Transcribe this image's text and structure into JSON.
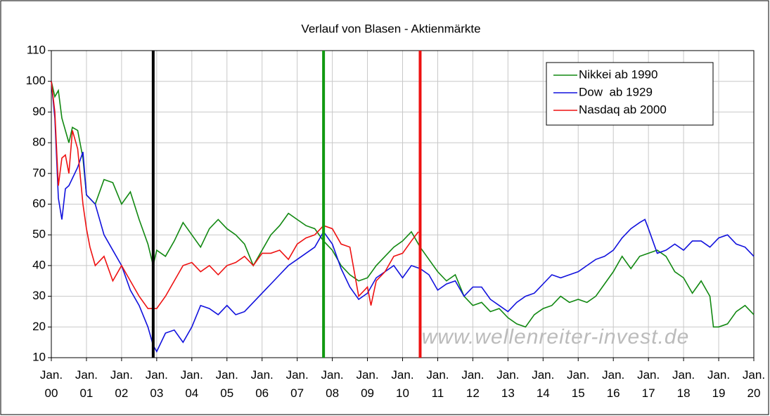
{
  "chart_data": {
    "type": "line",
    "title": "Verlauf von Blasen - Aktienmärkte",
    "watermark": "www.wellenreiter-invest.de",
    "xlim": [
      0,
      20
    ],
    "xticks": [
      {
        "value": 0,
        "label": "Jan. 00"
      },
      {
        "value": 1,
        "label": "Jan. 01"
      },
      {
        "value": 2,
        "label": "Jan. 02"
      },
      {
        "value": 3,
        "label": "Jan. 03"
      },
      {
        "value": 4,
        "label": "Jan. 04"
      },
      {
        "value": 5,
        "label": "Jan. 05"
      },
      {
        "value": 6,
        "label": "Jan. 06"
      },
      {
        "value": 7,
        "label": "Jan. 07"
      },
      {
        "value": 8,
        "label": "Jan. 08"
      },
      {
        "value": 9,
        "label": "Jan. 09"
      },
      {
        "value": 10,
        "label": "Jan. 10"
      },
      {
        "value": 11,
        "label": "Jan. 11"
      },
      {
        "value": 12,
        "label": "Jan. 12"
      },
      {
        "value": 13,
        "label": "Jan. 13"
      },
      {
        "value": 14,
        "label": "Jan. 14"
      },
      {
        "value": 15,
        "label": "Jan. 15"
      },
      {
        "value": 16,
        "label": "Jan. 16"
      },
      {
        "value": 17,
        "label": "Jan. 17"
      },
      {
        "value": 18,
        "label": "Jan. 18"
      },
      {
        "value": 19,
        "label": "Jan. 19"
      },
      {
        "value": 20,
        "label": "Jan. 20"
      }
    ],
    "ylim": [
      10,
      110
    ],
    "yticks": [
      10,
      20,
      30,
      40,
      50,
      60,
      70,
      80,
      90,
      100,
      110
    ],
    "grid": true,
    "legend": "top-right",
    "markers": [
      {
        "x": 2.9,
        "color": "#000000"
      },
      {
        "x": 7.75,
        "color": "#119911"
      },
      {
        "x": 10.5,
        "color": "#ee1111"
      }
    ],
    "series": [
      {
        "name": "Nikkei ab 1990",
        "color": "#118811",
        "x": [
          0,
          0.1,
          0.2,
          0.3,
          0.5,
          0.6,
          0.75,
          0.9,
          1,
          1.25,
          1.5,
          1.75,
          2,
          2.25,
          2.5,
          2.75,
          2.9,
          3,
          3.25,
          3.5,
          3.75,
          4,
          4.25,
          4.5,
          4.75,
          5,
          5.25,
          5.5,
          5.75,
          6,
          6.25,
          6.5,
          6.75,
          7,
          7.25,
          7.5,
          7.75,
          8,
          8.25,
          8.5,
          8.75,
          9,
          9.25,
          9.5,
          9.75,
          10,
          10.25,
          10.5,
          10.75,
          11,
          11.25,
          11.5,
          11.75,
          12,
          12.25,
          12.5,
          12.75,
          13,
          13.25,
          13.5,
          13.75,
          14,
          14.25,
          14.5,
          14.75,
          15,
          15.25,
          15.5,
          15.75,
          16,
          16.25,
          16.5,
          16.75,
          17,
          17.25,
          17.5,
          17.75,
          18,
          18.25,
          18.5,
          18.75,
          18.85,
          19,
          19.25,
          19.5,
          19.75,
          20
        ],
        "values": [
          100,
          95,
          97,
          88,
          80,
          85,
          84,
          75,
          63,
          60,
          68,
          67,
          60,
          64,
          55,
          47,
          40,
          45,
          43,
          48,
          54,
          50,
          46,
          52,
          55,
          52,
          50,
          47,
          40,
          45,
          50,
          53,
          57,
          55,
          53,
          52,
          48,
          45,
          40,
          37,
          35,
          36,
          40,
          43,
          46,
          48,
          51,
          46,
          42,
          38,
          35,
          37,
          30,
          27,
          28,
          25,
          26,
          23,
          21,
          20,
          24,
          26,
          27,
          30,
          28,
          29,
          28,
          30,
          34,
          38,
          43,
          39,
          43,
          44,
          45,
          43,
          38,
          36,
          31,
          35,
          30,
          20,
          20,
          21,
          25,
          27,
          24
        ]
      },
      {
        "name": "Dow  ab 1929",
        "color": "#1111dd",
        "x": [
          0,
          0.1,
          0.2,
          0.3,
          0.4,
          0.5,
          0.75,
          0.9,
          1,
          1.25,
          1.5,
          1.75,
          2,
          2.25,
          2.5,
          2.75,
          2.9,
          3,
          3.25,
          3.5,
          3.75,
          4,
          4.25,
          4.5,
          4.75,
          5,
          5.25,
          5.5,
          5.75,
          6,
          6.25,
          6.5,
          6.75,
          7,
          7.25,
          7.5,
          7.75,
          8,
          8.25,
          8.5,
          8.75,
          9,
          9.25,
          9.5,
          9.75,
          10,
          10.25,
          10.5,
          10.75,
          11,
          11.25,
          11.5,
          11.75,
          12,
          12.25,
          12.5,
          12.75,
          13,
          13.25,
          13.5,
          13.75,
          14,
          14.25,
          14.5,
          14.75,
          15,
          15.25,
          15.5,
          15.75,
          16,
          16.25,
          16.5,
          16.75,
          16.9,
          17,
          17.25,
          17.5,
          17.75,
          18,
          18.25,
          18.5,
          18.75,
          19,
          19.25,
          19.5,
          19.75,
          20
        ],
        "values": [
          100,
          88,
          62,
          55,
          65,
          66,
          72,
          77,
          63,
          60,
          50,
          45,
          40,
          32,
          27,
          20,
          14,
          12,
          18,
          19,
          15,
          20,
          27,
          26,
          24,
          27,
          24,
          25,
          28,
          31,
          34,
          37,
          40,
          42,
          44,
          46,
          51,
          47,
          39,
          33,
          29,
          31,
          36,
          38,
          40,
          36,
          40,
          39,
          37,
          32,
          34,
          35,
          30,
          33,
          33,
          29,
          27,
          25,
          28,
          30,
          31,
          34,
          37,
          36,
          37,
          38,
          40,
          42,
          43,
          45,
          49,
          52,
          54,
          55,
          52,
          44,
          45,
          47,
          45,
          48,
          48,
          46,
          49,
          50,
          47,
          46,
          43
        ]
      },
      {
        "name": "Nasdaq ab 2000",
        "color": "#ee1111",
        "x": [
          0,
          0.1,
          0.2,
          0.3,
          0.4,
          0.5,
          0.6,
          0.75,
          0.9,
          1,
          1.1,
          1.25,
          1.5,
          1.75,
          2,
          2.25,
          2.5,
          2.75,
          3,
          3.25,
          3.5,
          3.75,
          4,
          4.25,
          4.5,
          4.75,
          5,
          5.25,
          5.5,
          5.75,
          6,
          6.25,
          6.5,
          6.75,
          7,
          7.25,
          7.5,
          7.75,
          8,
          8.25,
          8.5,
          8.75,
          9,
          9.1,
          9.25,
          9.5,
          9.75,
          10,
          10.25,
          10.45
        ],
        "values": [
          100,
          90,
          66,
          75,
          76,
          70,
          84,
          78,
          60,
          52,
          46,
          40,
          43,
          35,
          40,
          35,
          30,
          26,
          26,
          30,
          35,
          40,
          41,
          38,
          40,
          37,
          40,
          41,
          43,
          40,
          44,
          44,
          45,
          42,
          47,
          49,
          50,
          53,
          52,
          47,
          46,
          30,
          33,
          27,
          35,
          38,
          43,
          44,
          48,
          51
        ]
      }
    ]
  }
}
